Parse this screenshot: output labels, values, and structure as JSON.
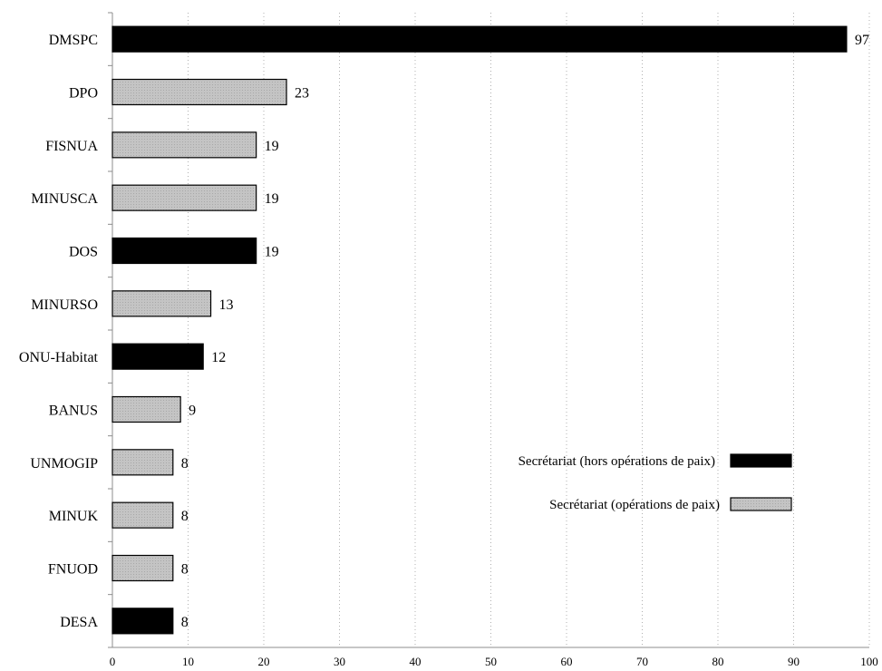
{
  "chart_data": {
    "type": "bar",
    "orientation": "horizontal",
    "categories": [
      "DMSPC",
      "DPO",
      "FISNUA",
      "MINUSCA",
      "DOS",
      "MINURSO",
      "ONU-Habitat",
      "BANUS",
      "UNMOGIP",
      "MINUK",
      "FNUOD",
      "DESA"
    ],
    "values": [
      97,
      23,
      19,
      19,
      19,
      13,
      12,
      9,
      8,
      8,
      8,
      8
    ],
    "groups": [
      "hors",
      "paix",
      "paix",
      "paix",
      "hors",
      "paix",
      "hors",
      "paix",
      "paix",
      "paix",
      "paix",
      "hors"
    ],
    "series": [
      {
        "key": "hors",
        "name": "Secrétariat (hors opérations de paix)",
        "color": "#000000"
      },
      {
        "key": "paix",
        "name": "Secrétariat (opérations de paix)",
        "color": "#bfbfbf"
      }
    ],
    "xlim": [
      0,
      100
    ],
    "xticks": [
      "0",
      "10",
      "20",
      "30",
      "40",
      "50",
      "60",
      "70",
      "80",
      "90",
      "100"
    ],
    "grid": "vertical dotted",
    "legend_position": "right-middle",
    "title": "",
    "xlabel": "",
    "ylabel": ""
  }
}
